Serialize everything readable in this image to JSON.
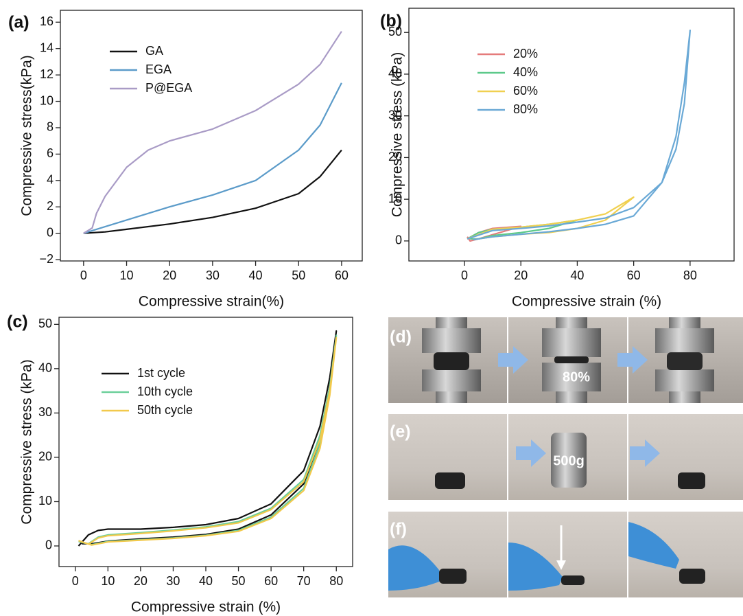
{
  "chart_data": [
    {
      "type": "line",
      "label": "(a)",
      "x_label": "Compressive strain(%)",
      "y_label": "Compressive stress(kPa)",
      "xlim": [
        -5.4,
        64.8
      ],
      "ylim": [
        -2.1,
        16.9
      ],
      "xticks": [
        0,
        10,
        20,
        30,
        40,
        50,
        60
      ],
      "yticks": [
        {
          "value": -2,
          "label": "−2"
        },
        0,
        2,
        4,
        6,
        8,
        10,
        12,
        14,
        16
      ],
      "legend": "upper left",
      "series": [
        {
          "name": "GA",
          "color": "#111111",
          "x": [
            0,
            5,
            10,
            20,
            30,
            40,
            50,
            55,
            60
          ],
          "values": [
            0,
            0.1,
            0.3,
            0.7,
            1.2,
            1.9,
            3.0,
            4.3,
            6.3
          ]
        },
        {
          "name": "EGA",
          "color": "#5b9bc9",
          "x": [
            0,
            5,
            10,
            20,
            30,
            40,
            50,
            55,
            60
          ],
          "values": [
            0,
            0.5,
            1.0,
            2.0,
            2.9,
            4.0,
            6.3,
            8.2,
            11.4
          ]
        },
        {
          "name": "P@EGA",
          "color": "#a99bc6",
          "x": [
            0,
            2,
            3,
            5,
            10,
            15,
            20,
            30,
            40,
            50,
            55,
            60
          ],
          "values": [
            0,
            0.4,
            1.5,
            2.8,
            5.0,
            6.3,
            7.0,
            7.9,
            9.3,
            11.3,
            12.8,
            15.3
          ]
        }
      ]
    },
    {
      "type": "line",
      "label": "(b)",
      "x_label": "Compressive strain (%)",
      "y_label": "Compressive stress (kPa)",
      "xlim": [
        -19.7,
        95.6
      ],
      "ylim": [
        -4.8,
        55.8
      ],
      "xticks": [
        0,
        20,
        40,
        60,
        80
      ],
      "yticks": [
        0,
        10,
        20,
        30,
        40,
        50
      ],
      "legend": "upper left",
      "series": [
        {
          "name": "20%",
          "color": "#e57b7b",
          "x": [
            1,
            5,
            10,
            20,
            15,
            10,
            5,
            2,
            1
          ],
          "values": [
            0.5,
            2,
            3,
            3.5,
            2.5,
            1.5,
            0.5,
            0,
            1
          ]
        },
        {
          "name": "40%",
          "color": "#5dc98a",
          "x": [
            1,
            5,
            10,
            20,
            30,
            40,
            30,
            20,
            10,
            5,
            2
          ],
          "values": [
            0.5,
            2,
            2.8,
            3.3,
            4,
            5,
            3,
            2,
            1.3,
            0.5,
            0.5
          ]
        },
        {
          "name": "60%",
          "color": "#f0d050",
          "x": [
            1,
            10,
            20,
            30,
            40,
            50,
            60,
            50,
            40,
            30,
            20,
            10,
            3
          ],
          "values": [
            0.5,
            2.8,
            3.3,
            4,
            5,
            6.5,
            10.5,
            5,
            3,
            2,
            1.6,
            1,
            0.3
          ]
        },
        {
          "name": "80%",
          "color": "#6aa9d6",
          "x": [
            1,
            10,
            20,
            30,
            40,
            50,
            60,
            70,
            75,
            78,
            80,
            78,
            75,
            70,
            60,
            50,
            40,
            30,
            20,
            10,
            3
          ],
          "values": [
            0.5,
            2.5,
            3,
            3.6,
            4.5,
            5.5,
            8,
            14,
            22,
            33,
            50.5,
            38,
            25,
            14,
            6,
            4,
            3,
            2.2,
            1.6,
            1,
            0.3
          ]
        }
      ]
    },
    {
      "type": "line",
      "label": "(c)",
      "x_label": "Compressive strain (%)",
      "y_label": "Compressive stress (kPa)",
      "xlim": [
        -5,
        85
      ],
      "ylim": [
        -4.65,
        51.6
      ],
      "xticks": [
        0,
        10,
        20,
        30,
        40,
        50,
        60,
        70,
        80
      ],
      "yticks": [
        0,
        10,
        20,
        30,
        40,
        50
      ],
      "legend": "upper left",
      "series": [
        {
          "name": "1st cycle",
          "color": "#111111",
          "x": [
            1,
            4,
            7,
            10,
            20,
            30,
            40,
            50,
            60,
            70,
            75,
            78,
            80,
            78,
            75,
            70,
            60,
            50,
            40,
            30,
            20,
            10,
            5,
            2
          ],
          "values": [
            0,
            2.5,
            3.5,
            3.8,
            3.8,
            4.2,
            4.8,
            6.2,
            9.5,
            17,
            27,
            38,
            48.5,
            36,
            24,
            14,
            7,
            3.8,
            2.6,
            2,
            1.6,
            1.1,
            0.5,
            0.5
          ]
        },
        {
          "name": "10th cycle",
          "color": "#6ccf9a",
          "x": [
            1,
            4,
            7,
            10,
            20,
            30,
            40,
            50,
            60,
            70,
            75,
            78,
            80,
            78,
            75,
            70,
            60,
            50,
            40,
            30,
            20,
            10,
            5,
            2
          ],
          "values": [
            1,
            0.5,
            2,
            2.5,
            3,
            3.6,
            4.3,
            5.5,
            8.5,
            15,
            25,
            36,
            47.5,
            35,
            23,
            13,
            6.5,
            3.5,
            2.4,
            1.8,
            1.4,
            1,
            0.3,
            0.8
          ]
        },
        {
          "name": "50th cycle",
          "color": "#f2c94c",
          "x": [
            1,
            4,
            7,
            10,
            20,
            30,
            40,
            50,
            60,
            70,
            75,
            78,
            80,
            78,
            75,
            70,
            60,
            50,
            40,
            30,
            20,
            10,
            5,
            2
          ],
          "values": [
            1.2,
            0.4,
            1.8,
            2.3,
            2.8,
            3.4,
            4.1,
            5.2,
            8.2,
            14.5,
            24,
            35,
            47,
            34,
            22,
            12.5,
            6.2,
            3.3,
            2.3,
            1.7,
            1.3,
            0.9,
            0.2,
            0.9
          ]
        }
      ]
    }
  ],
  "photos": {
    "d": {
      "label": "(d)",
      "caption": "80%"
    },
    "e": {
      "label": "(e)",
      "caption": "500g"
    },
    "f": {
      "label": "(f)"
    }
  }
}
